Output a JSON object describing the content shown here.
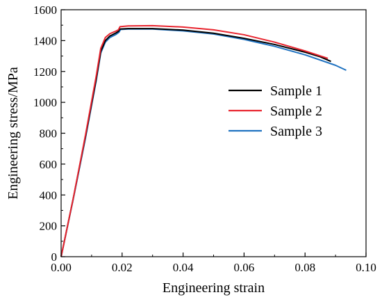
{
  "chart_data": {
    "type": "line",
    "xlabel": "Engineering strain",
    "ylabel": "Engineering stress/MPa",
    "xlim": [
      0,
      0.1
    ],
    "ylim": [
      0,
      1600
    ],
    "x_ticks": [
      "0.00",
      "0.02",
      "0.04",
      "0.06",
      "0.08",
      "0.10"
    ],
    "y_ticks": [
      "0",
      "200",
      "400",
      "600",
      "800",
      "1000",
      "1200",
      "1400",
      "1600"
    ],
    "grid": false,
    "legend_position": "center-right",
    "series": [
      {
        "name": "Sample 1",
        "color": "#000000",
        "points": [
          [
            0,
            0
          ],
          [
            0.004,
            380
          ],
          [
            0.008,
            780
          ],
          [
            0.0115,
            1150
          ],
          [
            0.013,
            1330
          ],
          [
            0.0145,
            1400
          ],
          [
            0.016,
            1430
          ],
          [
            0.018,
            1450
          ],
          [
            0.0188,
            1460
          ],
          [
            0.0192,
            1475
          ],
          [
            0.022,
            1478
          ],
          [
            0.03,
            1478
          ],
          [
            0.04,
            1468
          ],
          [
            0.05,
            1448
          ],
          [
            0.06,
            1415
          ],
          [
            0.07,
            1375
          ],
          [
            0.08,
            1325
          ],
          [
            0.085,
            1295
          ],
          [
            0.0885,
            1265
          ]
        ]
      },
      {
        "name": "Sample 2",
        "color": "#e8252f",
        "points": [
          [
            0,
            0
          ],
          [
            0.004,
            380
          ],
          [
            0.008,
            790
          ],
          [
            0.0115,
            1170
          ],
          [
            0.013,
            1350
          ],
          [
            0.0145,
            1420
          ],
          [
            0.016,
            1445
          ],
          [
            0.018,
            1462
          ],
          [
            0.0188,
            1470
          ],
          [
            0.0193,
            1490
          ],
          [
            0.022,
            1495
          ],
          [
            0.03,
            1497
          ],
          [
            0.04,
            1488
          ],
          [
            0.05,
            1470
          ],
          [
            0.06,
            1438
          ],
          [
            0.07,
            1390
          ],
          [
            0.08,
            1333
          ],
          [
            0.0875,
            1285
          ]
        ]
      },
      {
        "name": "Sample 3",
        "color": "#1f72c0",
        "points": [
          [
            0,
            0
          ],
          [
            0.004,
            375
          ],
          [
            0.008,
            770
          ],
          [
            0.0115,
            1140
          ],
          [
            0.013,
            1320
          ],
          [
            0.0145,
            1390
          ],
          [
            0.016,
            1420
          ],
          [
            0.018,
            1440
          ],
          [
            0.019,
            1455
          ],
          [
            0.0195,
            1472
          ],
          [
            0.022,
            1475
          ],
          [
            0.03,
            1475
          ],
          [
            0.04,
            1463
          ],
          [
            0.05,
            1443
          ],
          [
            0.06,
            1408
          ],
          [
            0.07,
            1363
          ],
          [
            0.08,
            1308
          ],
          [
            0.09,
            1240
          ],
          [
            0.0935,
            1208
          ]
        ]
      }
    ]
  }
}
